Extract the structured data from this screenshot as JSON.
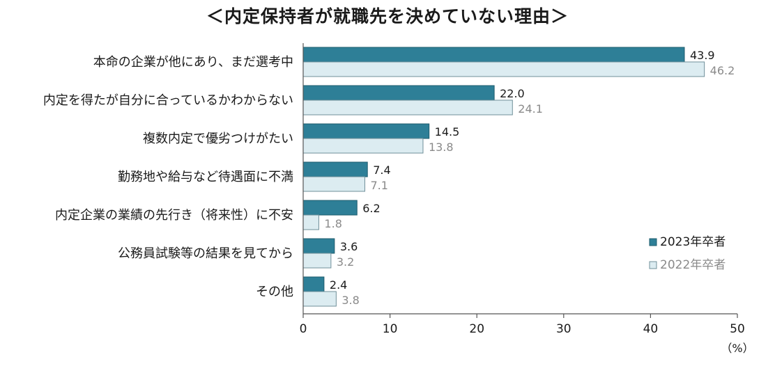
{
  "chart_data": {
    "type": "bar",
    "orientation": "horizontal",
    "title": "＜内定保持者が就職先を決めていない理由＞",
    "categories": [
      "本命の企業が他にあり、まだ選考中",
      "内定を得たが自分に合っているかわからない",
      "複数内定で優劣つけがたい",
      "勤務地や給与など待遇面に不満",
      "内定企業の業績の先行き（将来性）に不安",
      "公務員試験等の結果を見てから",
      "その他"
    ],
    "series": [
      {
        "name": "2023年卒者",
        "values": [
          43.9,
          22.0,
          14.5,
          7.4,
          6.2,
          3.6,
          2.4
        ],
        "labels": [
          "43.9",
          "22.0",
          "14.5",
          "7.4",
          "6.2",
          "3.6",
          "2.4"
        ]
      },
      {
        "name": "2022年卒者",
        "values": [
          46.2,
          24.1,
          13.8,
          7.1,
          1.8,
          3.2,
          3.8
        ],
        "labels": [
          "46.2",
          "24.1",
          "13.8",
          "7.1",
          "1.8",
          "3.2",
          "3.8"
        ]
      }
    ],
    "xlim": [
      0,
      50
    ],
    "xticks": [
      "0",
      "10",
      "20",
      "30",
      "40",
      "50"
    ],
    "xlabel": "（%）",
    "legend_position": "bottom-right",
    "colors": {
      "series_2023": "#2e7f97",
      "series_2023_edge": "#1f5c6e",
      "series_2022": "#dcecf1",
      "series_2022_edge": "#6f8f99",
      "axis": "#555555"
    }
  }
}
